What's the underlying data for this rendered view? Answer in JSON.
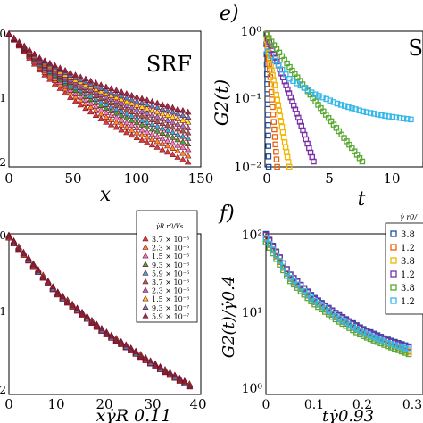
{
  "panels": {
    "tl": {
      "inset": "SRF",
      "xlabel": "x",
      "xticks": [
        "0",
        "50",
        "100",
        "150"
      ],
      "yticks_partial": [
        "0",
        "1",
        "2"
      ]
    },
    "tr": {
      "letter": "e)",
      "inset": "S",
      "ylabel": "G2(t)",
      "xlabel": "t",
      "xticks": [
        "0",
        "5",
        "10"
      ],
      "yticks": [
        "10⁰",
        "10⁻¹",
        "10⁻²"
      ]
    },
    "bl": {
      "xlabel": "xγ̇R 0.11",
      "xticks": [
        "0",
        "10",
        "20",
        "30",
        "40"
      ],
      "yticks_partial": [
        "0",
        "1",
        "2"
      ],
      "legend_title": "γ̇R r0/Vs",
      "legend": [
        "3.7 × 10⁻⁵",
        "2.3 × 10⁻⁵",
        "1.5 × 10⁻⁵",
        "9.3 × 10⁻⁶",
        "5.9 × 10⁻⁶",
        "3.7 × 10⁻⁶",
        "2.3 × 10⁻⁶",
        "1.5 × 10⁻⁶",
        "9.3 × 10⁻⁷",
        "5.9 × 10⁻⁷"
      ]
    },
    "br": {
      "letter": "f)",
      "ylabel": "G2(t)/γ̇0.4",
      "xlabel": "tγ̇0.93",
      "xticks": [
        "0",
        "0.1",
        "0.2",
        "0.3"
      ],
      "yticks": [
        "10²",
        "10¹",
        "10⁰"
      ],
      "legend_title": "γ̇ r0/",
      "legend": [
        "3.8",
        "1.2",
        "3.8",
        "1.2",
        "3.8",
        "1.2"
      ]
    }
  },
  "colors": {
    "series": [
      "#d62728",
      "#ff7f0e",
      "#e377c2",
      "#2ca02c",
      "#17a8e0",
      "#8c564b",
      "#9467bd",
      "#ffd700",
      "#3b82c4",
      "#8b1a3a"
    ],
    "right_series": [
      "#1f4e9e",
      "#e8620c",
      "#f2b705",
      "#7b2fa6",
      "#5aa832",
      "#35b8e8"
    ]
  },
  "chart_data": [
    {
      "type": "scatter",
      "panel": "top-left",
      "xlabel": "x",
      "xlim": [
        0,
        150
      ],
      "inset_label": "SRF",
      "series": [
        {
          "marker": "triangle",
          "x": [
            0,
            25,
            50,
            75,
            100,
            125,
            140
          ],
          "y": [
            0.0,
            0.6,
            1.05,
            1.4,
            1.66,
            1.9,
            2.05
          ]
        },
        {
          "marker": "triangle",
          "x": [
            0,
            25,
            50,
            75,
            100,
            125,
            140
          ],
          "y": [
            0.0,
            0.56,
            0.98,
            1.32,
            1.58,
            1.8,
            1.95
          ]
        },
        {
          "marker": "triangle",
          "x": [
            0,
            25,
            50,
            75,
            100,
            125,
            140
          ],
          "y": [
            0.0,
            0.54,
            0.93,
            1.25,
            1.5,
            1.72,
            1.85
          ]
        },
        {
          "marker": "triangle",
          "x": [
            0,
            25,
            50,
            75,
            100,
            125,
            140
          ],
          "y": [
            0.0,
            0.52,
            0.88,
            1.18,
            1.42,
            1.63,
            1.76
          ]
        },
        {
          "marker": "triangle",
          "x": [
            0,
            25,
            50,
            75,
            100,
            125,
            140
          ],
          "y": [
            0.0,
            0.5,
            0.84,
            1.12,
            1.35,
            1.55,
            1.67
          ]
        },
        {
          "marker": "triangle",
          "x": [
            0,
            25,
            50,
            75,
            100,
            125,
            140
          ],
          "y": [
            0.0,
            0.48,
            0.8,
            1.06,
            1.28,
            1.47,
            1.58
          ]
        },
        {
          "marker": "triangle",
          "x": [
            0,
            25,
            50,
            75,
            100,
            125,
            140
          ],
          "y": [
            0.0,
            0.46,
            0.76,
            1.0,
            1.21,
            1.39,
            1.5
          ]
        },
        {
          "marker": "triangle",
          "x": [
            0,
            25,
            50,
            75,
            100,
            125,
            140
          ],
          "y": [
            0.0,
            0.44,
            0.72,
            0.95,
            1.14,
            1.31,
            1.41
          ]
        },
        {
          "marker": "triangle",
          "x": [
            0,
            25,
            50,
            75,
            100,
            125,
            140
          ],
          "y": [
            0.0,
            0.42,
            0.68,
            0.9,
            1.08,
            1.23,
            1.33
          ]
        },
        {
          "marker": "triangle",
          "x": [
            0,
            25,
            50,
            75,
            100,
            125,
            140
          ],
          "y": [
            0.0,
            0.4,
            0.64,
            0.84,
            1.01,
            1.16,
            1.25
          ]
        }
      ]
    },
    {
      "type": "scatter",
      "panel": "top-right",
      "ylabel": "G2(t)",
      "xlabel": "t",
      "yscale": "log",
      "ylim": [
        0.01,
        1
      ],
      "xlim": [
        0,
        13
      ],
      "series": [
        {
          "marker": "square",
          "x": [
            0.1,
            0.2,
            0.3
          ],
          "y": [
            0.9,
            0.1,
            0.01
          ]
        },
        {
          "marker": "square",
          "x": [
            0.1,
            0.4,
            0.7,
            1.0
          ],
          "y": [
            0.9,
            0.25,
            0.05,
            0.01
          ]
        },
        {
          "marker": "square",
          "x": [
            0.1,
            0.5,
            1.0,
            1.5,
            2.0
          ],
          "y": [
            0.9,
            0.3,
            0.1,
            0.03,
            0.01
          ]
        },
        {
          "marker": "square",
          "x": [
            0.1,
            1.0,
            2.0,
            3.0,
            4.0
          ],
          "y": [
            0.9,
            0.35,
            0.12,
            0.04,
            0.012
          ]
        },
        {
          "marker": "square",
          "x": [
            0.1,
            2.0,
            4.0,
            6.0,
            8.0
          ],
          "y": [
            0.9,
            0.3,
            0.1,
            0.035,
            0.012
          ]
        },
        {
          "marker": "square",
          "x": [
            0.2,
            2.0,
            4.0,
            6.0,
            8.0,
            10.0,
            12.0
          ],
          "y": [
            0.5,
            0.2,
            0.12,
            0.085,
            0.066,
            0.056,
            0.05
          ]
        }
      ]
    },
    {
      "type": "scatter",
      "panel": "bottom-left",
      "xlabel": "xγ̇R 0.11",
      "xlim": [
        0,
        40
      ],
      "series": [
        {
          "name": "3.7 × 10⁻⁵",
          "marker": "triangle",
          "x": [
            0,
            10,
            20,
            30,
            38
          ],
          "y": [
            0.0,
            0.75,
            1.28,
            1.7,
            2.0
          ]
        },
        {
          "name": "2.3 × 10⁻⁵",
          "marker": "triangle",
          "x": [
            0,
            10,
            20,
            30,
            38
          ],
          "y": [
            0.0,
            0.75,
            1.28,
            1.7,
            2.0
          ]
        },
        {
          "name": "1.5 × 10⁻⁵",
          "marker": "triangle",
          "x": [
            0,
            10,
            20,
            30,
            38
          ],
          "y": [
            0.0,
            0.75,
            1.28,
            1.7,
            2.0
          ]
        },
        {
          "name": "9.3 × 10⁻⁶",
          "marker": "triangle",
          "x": [
            0,
            10,
            20,
            30,
            38
          ],
          "y": [
            0.0,
            0.75,
            1.28,
            1.7,
            2.0
          ]
        },
        {
          "name": "5.9 × 10⁻⁶",
          "marker": "triangle",
          "x": [
            0,
            10,
            20,
            30,
            38
          ],
          "y": [
            0.0,
            0.75,
            1.28,
            1.7,
            2.0
          ]
        },
        {
          "name": "3.7 × 10⁻⁶",
          "marker": "triangle",
          "x": [
            0,
            10,
            20,
            30,
            38
          ],
          "y": [
            0.0,
            0.75,
            1.28,
            1.7,
            2.0
          ]
        },
        {
          "name": "2.3 × 10⁻⁶",
          "marker": "triangle",
          "x": [
            0,
            10,
            20,
            30,
            38
          ],
          "y": [
            0.0,
            0.75,
            1.28,
            1.7,
            2.0
          ]
        },
        {
          "name": "1.5 × 10⁻⁶",
          "marker": "triangle",
          "x": [
            0,
            10,
            20,
            30,
            38
          ],
          "y": [
            0.0,
            0.75,
            1.28,
            1.7,
            2.0
          ]
        },
        {
          "name": "9.3 × 10⁻⁷",
          "marker": "triangle",
          "x": [
            0,
            10,
            20,
            30,
            38
          ],
          "y": [
            0.0,
            0.75,
            1.28,
            1.7,
            2.0
          ]
        },
        {
          "name": "5.9 × 10⁻⁷",
          "marker": "triangle",
          "x": [
            0,
            10,
            20,
            30,
            38
          ],
          "y": [
            0.0,
            0.75,
            1.28,
            1.7,
            2.0
          ]
        }
      ]
    },
    {
      "type": "scatter",
      "panel": "bottom-right",
      "ylabel": "G2(t)/γ̇0.4",
      "xlabel": "tγ̇0.93",
      "yscale": "log",
      "ylim": [
        0.6,
        100
      ],
      "xlim": [
        0,
        0.33
      ],
      "series": [
        {
          "name": "3.8",
          "marker": "square",
          "x": [
            0.0,
            0.05,
            0.1,
            0.15,
            0.2,
            0.25,
            0.3
          ],
          "y": [
            90,
            25,
            12,
            7,
            4.5,
            3.2,
            2.5
          ]
        },
        {
          "name": "1.2",
          "marker": "square",
          "x": [
            0.0,
            0.05,
            0.1,
            0.15,
            0.2,
            0.25,
            0.3
          ],
          "y": [
            90,
            26,
            12.5,
            7.2,
            4.6,
            3.3,
            2.5
          ]
        },
        {
          "name": "3.8",
          "marker": "square",
          "x": [
            0.0,
            0.05,
            0.1,
            0.15,
            0.2,
            0.25,
            0.3
          ],
          "y": [
            88,
            25,
            12,
            7,
            4.4,
            3.1,
            2.4
          ]
        },
        {
          "name": "1.2",
          "marker": "square",
          "x": [
            0.0,
            0.05,
            0.1,
            0.15,
            0.2,
            0.25,
            0.3
          ],
          "y": [
            90,
            26,
            12,
            7.1,
            4.5,
            3.2,
            2.5
          ]
        },
        {
          "name": "3.8",
          "marker": "square",
          "x": [
            0.0,
            0.05,
            0.1,
            0.15,
            0.2,
            0.25,
            0.3
          ],
          "y": [
            85,
            25,
            12,
            7,
            4.4,
            3.2,
            2.4
          ]
        },
        {
          "name": "1.2",
          "marker": "square",
          "x": [
            0.0,
            0.05,
            0.1,
            0.15,
            0.2,
            0.25,
            0.3
          ],
          "y": [
            90,
            26,
            12.5,
            7.2,
            4.6,
            3.3,
            2.6
          ]
        }
      ]
    }
  ]
}
